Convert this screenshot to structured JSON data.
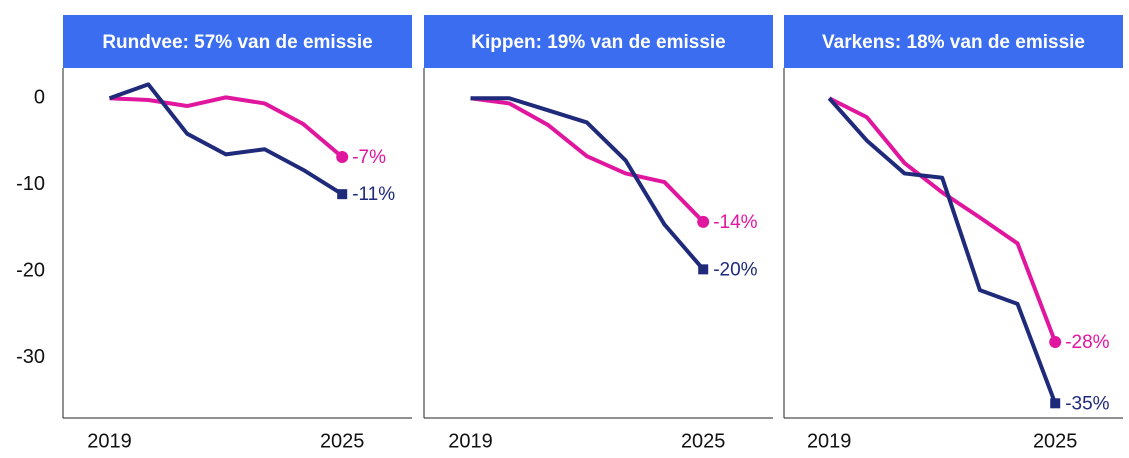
{
  "chart_data": [
    {
      "type": "line",
      "title": "Rundvee: 57% van de emissie",
      "x": [
        2019,
        2020,
        2021,
        2022,
        2023,
        2024,
        2025
      ],
      "xlim": [
        2017.8,
        2026.8
      ],
      "xticks": [
        2019,
        2025
      ],
      "ylim": [
        -37,
        3.5
      ],
      "yticks": [
        0,
        -10,
        -20,
        -30
      ],
      "series": [
        {
          "color": "#e0169f",
          "values": [
            0,
            -0.2,
            -0.9,
            0.1,
            -0.6,
            -3,
            -6.8
          ],
          "value_labels": [
            null,
            null,
            null,
            null,
            null,
            null,
            "-7%"
          ]
        },
        {
          "color": "#1f2a7a",
          "values": [
            0,
            1.6,
            -4.1,
            -6.5,
            -5.9,
            -8.3,
            -11.1
          ],
          "value_labels": [
            null,
            null,
            null,
            null,
            null,
            null,
            "-11%"
          ]
        }
      ]
    },
    {
      "type": "line",
      "title": "Kippen: 19% van de emissie",
      "x": [
        2019,
        2020,
        2021,
        2022,
        2023,
        2024,
        2025
      ],
      "xlim": [
        2017.8,
        2026.8
      ],
      "xticks": [
        2019,
        2025
      ],
      "ylim": [
        -37,
        3.5
      ],
      "series": [
        {
          "color": "#e0169f",
          "values": [
            0,
            -0.6,
            -3.1,
            -6.7,
            -8.7,
            -9.7,
            -14.3
          ],
          "value_labels": [
            null,
            null,
            null,
            null,
            null,
            null,
            "-14%"
          ]
        },
        {
          "color": "#1f2a7a",
          "values": [
            0,
            0,
            -1.4,
            -2.8,
            -7.2,
            -14.6,
            -19.8
          ],
          "value_labels": [
            null,
            null,
            null,
            null,
            null,
            null,
            "-20%"
          ]
        }
      ]
    },
    {
      "type": "line",
      "title": "Varkens: 18% van de emissie",
      "x": [
        2019,
        2020,
        2021,
        2022,
        2023,
        2024,
        2025
      ],
      "xlim": [
        2017.8,
        2026.8
      ],
      "xticks": [
        2019,
        2025
      ],
      "ylim": [
        -37,
        3.5
      ],
      "series": [
        {
          "color": "#e0169f",
          "values": [
            0,
            -2.2,
            -7.5,
            -10.9,
            -13.8,
            -16.8,
            -28.2
          ],
          "value_labels": [
            null,
            null,
            null,
            null,
            null,
            null,
            "-28%"
          ]
        },
        {
          "color": "#1f2a7a",
          "values": [
            0,
            -4.9,
            -8.7,
            -9.2,
            -22.2,
            -23.8,
            -35.3
          ],
          "value_labels": [
            null,
            null,
            null,
            null,
            null,
            null,
            "-35%"
          ]
        }
      ]
    }
  ]
}
